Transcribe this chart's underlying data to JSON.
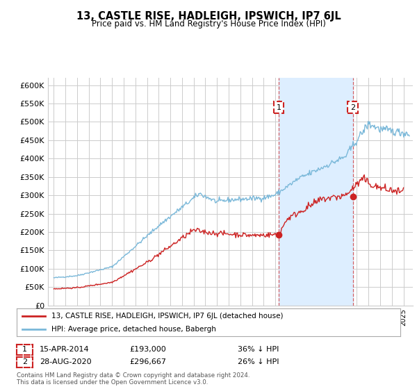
{
  "title": "13, CASTLE RISE, HADLEIGH, IPSWICH, IP7 6JL",
  "subtitle": "Price paid vs. HM Land Registry's House Price Index (HPI)",
  "ylabel_ticks": [
    "£0",
    "£50K",
    "£100K",
    "£150K",
    "£200K",
    "£250K",
    "£300K",
    "£350K",
    "£400K",
    "£450K",
    "£500K",
    "£550K",
    "£600K"
  ],
  "ylim": [
    0,
    620000
  ],
  "ytick_vals": [
    0,
    50000,
    100000,
    150000,
    200000,
    250000,
    300000,
    350000,
    400000,
    450000,
    500000,
    550000,
    600000
  ],
  "hpi_color": "#7ab8d9",
  "price_color": "#cc2222",
  "grid_color": "#cccccc",
  "background_color": "#ffffff",
  "shade_color": "#ddeeff",
  "xlim_start": 1994.5,
  "xlim_end": 2025.8,
  "t1_x": 2014.29,
  "t1_y": 193000,
  "t2_x": 2020.65,
  "t2_y": 296667,
  "annotation1": {
    "label": "1",
    "date": "15-APR-2014",
    "price": "£193,000",
    "pct": "36% ↓ HPI"
  },
  "annotation2": {
    "label": "2",
    "date": "28-AUG-2020",
    "price": "£296,667",
    "pct": "26% ↓ HPI"
  },
  "legend_line1": "13, CASTLE RISE, HADLEIGH, IPSWICH, IP7 6JL (detached house)",
  "legend_line2": "HPI: Average price, detached house, Babergh",
  "footer": "Contains HM Land Registry data © Crown copyright and database right 2024.\nThis data is licensed under the Open Government Licence v3.0."
}
